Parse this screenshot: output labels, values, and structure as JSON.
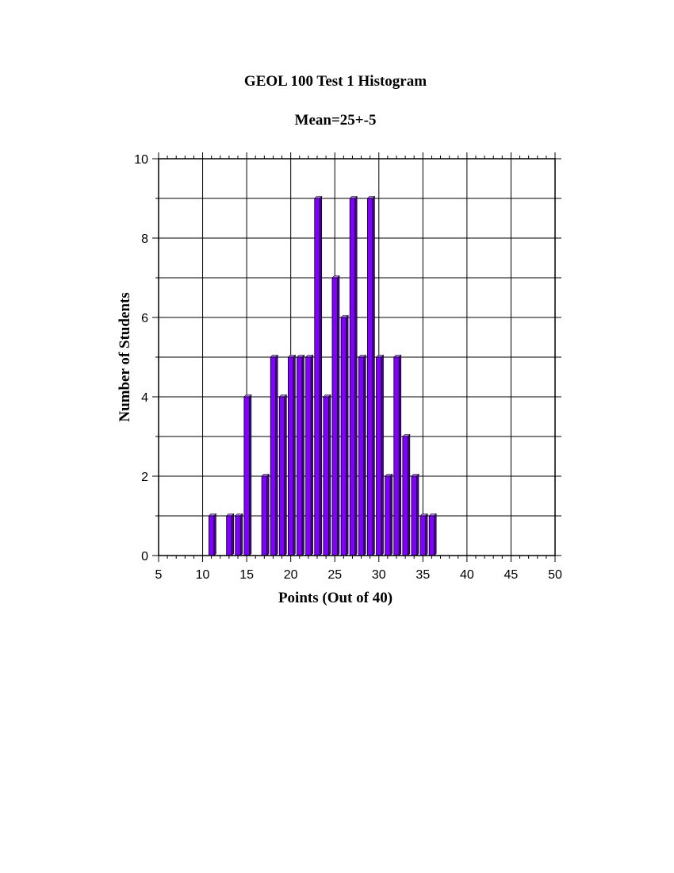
{
  "chart_data": {
    "type": "bar",
    "title": "GEOL 100 Test 1 Histogram",
    "subtitle": "Mean=25+-5",
    "xlabel": "Points (Out of 40)",
    "ylabel": "Number of Students",
    "xlim": [
      5,
      50
    ],
    "ylim": [
      0,
      10
    ],
    "x_ticks": [
      5,
      10,
      15,
      20,
      25,
      30,
      35,
      40,
      45,
      50
    ],
    "y_ticks": [
      0,
      2,
      4,
      6,
      8,
      10
    ],
    "grid": true,
    "bar_color": "#8000ff",
    "x": [
      11,
      13,
      14,
      15,
      17,
      18,
      19,
      20,
      21,
      22,
      23,
      24,
      25,
      26,
      27,
      28,
      29,
      30,
      31,
      32,
      33,
      34,
      35,
      36
    ],
    "values": [
      1,
      1,
      1,
      4,
      2,
      5,
      4,
      5,
      5,
      5,
      9,
      4,
      7,
      6,
      9,
      5,
      9,
      5,
      2,
      5,
      3,
      2,
      1,
      1
    ]
  }
}
